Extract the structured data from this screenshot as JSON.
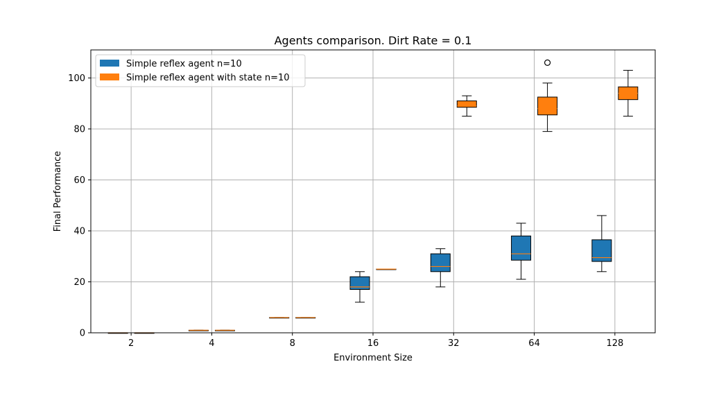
{
  "chart_data": {
    "type": "box",
    "title": "Agents comparison. Dirt Rate = 0.1",
    "xlabel": "Environment Size",
    "ylabel": "Final Performance",
    "categories": [
      "2",
      "4",
      "8",
      "16",
      "32",
      "64",
      "128"
    ],
    "yticks": [
      "0",
      "20",
      "40",
      "60",
      "80",
      "100"
    ],
    "ylim": [
      0,
      111
    ],
    "grid": true,
    "legend_position": "top-left",
    "colors": {
      "series1": "#1f77b4",
      "series2": "#ff7f0e",
      "median": "#ff7f0e",
      "grid": "#b0b0b0"
    },
    "series": [
      {
        "name": "Simple reflex agent n=10",
        "boxes": [
          {
            "min": 0,
            "q1": 0,
            "median": 0,
            "q3": 0,
            "max": 0,
            "outliers": []
          },
          {
            "min": 1,
            "q1": 1,
            "median": 1,
            "q3": 1,
            "max": 1,
            "outliers": []
          },
          {
            "min": 6,
            "q1": 6,
            "median": 6,
            "q3": 6,
            "max": 6,
            "outliers": []
          },
          {
            "min": 12,
            "q1": 17,
            "median": 18,
            "q3": 22,
            "max": 24,
            "outliers": []
          },
          {
            "min": 18,
            "q1": 24,
            "median": 26,
            "q3": 31,
            "max": 33,
            "outliers": []
          },
          {
            "min": 21,
            "q1": 28.5,
            "median": 31,
            "q3": 38,
            "max": 43,
            "outliers": []
          },
          {
            "min": 24,
            "q1": 28,
            "median": 29.5,
            "q3": 36.5,
            "max": 46,
            "outliers": []
          }
        ]
      },
      {
        "name": "Simple reflex agent with state n=10",
        "boxes": [
          {
            "min": 0,
            "q1": 0,
            "median": 0,
            "q3": 0,
            "max": 0,
            "outliers": []
          },
          {
            "min": 1,
            "q1": 1,
            "median": 1,
            "q3": 1,
            "max": 1,
            "outliers": []
          },
          {
            "min": 6,
            "q1": 6,
            "median": 6,
            "q3": 6,
            "max": 6,
            "outliers": []
          },
          {
            "min": 25,
            "q1": 25,
            "median": 25,
            "q3": 25,
            "max": 25,
            "outliers": []
          },
          {
            "min": 85,
            "q1": 88.5,
            "median": 89,
            "q3": 91,
            "max": 93,
            "outliers": []
          },
          {
            "min": 79,
            "q1": 85.5,
            "median": 88,
            "q3": 92.5,
            "max": 98,
            "outliers": [
              106
            ]
          },
          {
            "min": 85,
            "q1": 91.5,
            "median": 94,
            "q3": 96.5,
            "max": 103,
            "outliers": []
          }
        ]
      }
    ]
  }
}
